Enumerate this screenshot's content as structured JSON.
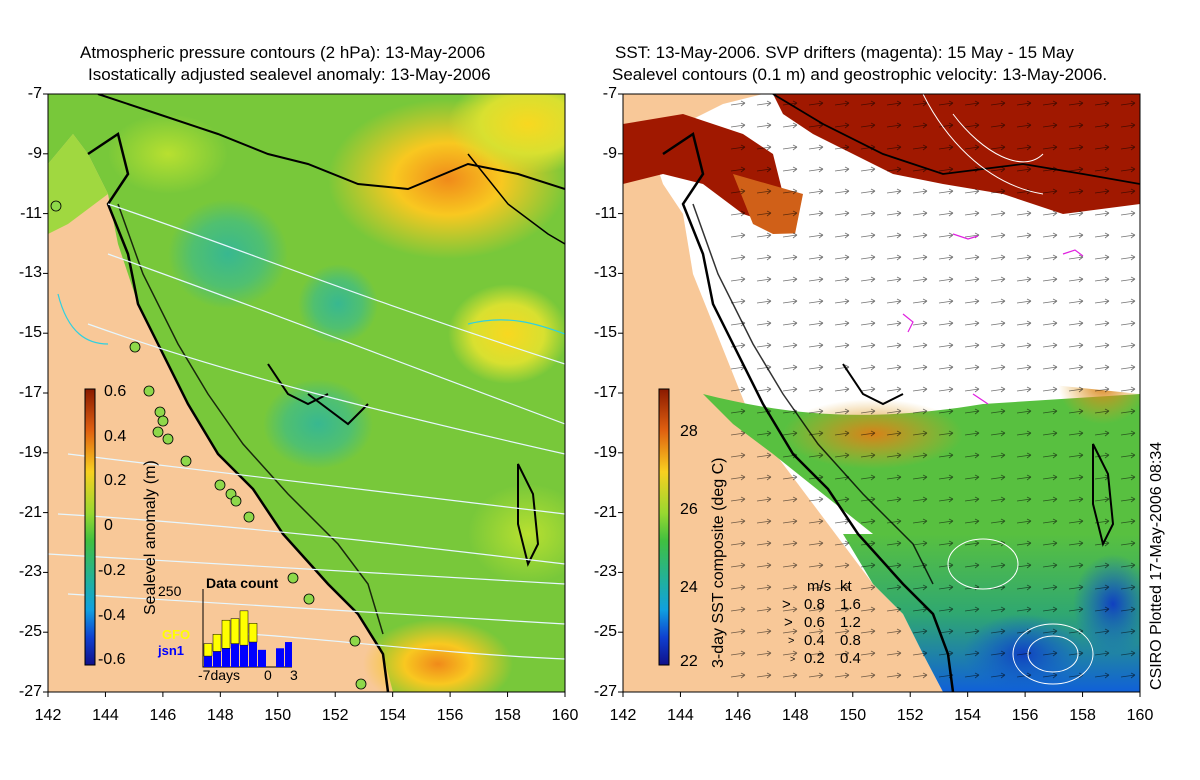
{
  "left_panel": {
    "title_line1": "Atmospheric pressure contours (2 hPa): 13-May-2006",
    "title_line2": "Isostatically adjusted sealevel anomaly: 13-May-2006",
    "colorbar": {
      "label": "Sealevel anomaly (m)",
      "ticks": [
        "0.6",
        "0.4",
        "0.2",
        "0",
        "-0.2",
        "-0.4",
        "-0.6"
      ]
    },
    "data_count": {
      "title": "Data count",
      "ymax_label": "250",
      "x_left": "-7days",
      "x_zero": "0",
      "x_right": "3",
      "legend_gfo": "GFO",
      "legend_jsn1": "jsn1",
      "gfo_color": "#ffff00",
      "jsn1_color": "#0000ff",
      "gfo_values": [
        40,
        55,
        90,
        80,
        110,
        60,
        0,
        0,
        0,
        0
      ],
      "jsn1_values": [
        35,
        50,
        60,
        75,
        70,
        80,
        55,
        0,
        60,
        80
      ]
    }
  },
  "right_panel": {
    "title_line1": "SST: 13-May-2006. SVP drifters (magenta): 15 May - 15 May",
    "title_line2": "Sealevel contours (0.1 m) and geostrophic velocity: 13-May-2006.",
    "colorbar": {
      "label": "3-day SST composite (deg C)",
      "ticks": [
        "28",
        "26",
        "24",
        "22"
      ]
    },
    "velocity_legend": {
      "header_ms": "m/s",
      "header_kt": "kt",
      "rows": [
        {
          "ms": "0.8",
          "kt": "1.6"
        },
        {
          "ms": "0.6",
          "kt": "1.2"
        },
        {
          "ms": "0.4",
          "kt": "0.8"
        },
        {
          "ms": "0.2",
          "kt": "0.4"
        }
      ]
    },
    "plotted_note": "CSIRO Plotted 17-May-2006 08:34"
  },
  "axes": {
    "y_ticks": [
      "-7",
      "-9",
      "-11",
      "-13",
      "-15",
      "-17",
      "-19",
      "-21",
      "-23",
      "-25",
      "-27"
    ],
    "x_ticks": [
      "142",
      "144",
      "146",
      "148",
      "150",
      "152",
      "154",
      "156",
      "158",
      "160"
    ]
  },
  "colors": {
    "land": "#f8c898",
    "sla_base": "#7ccc3a",
    "sst_warm": "#9a1a00"
  }
}
